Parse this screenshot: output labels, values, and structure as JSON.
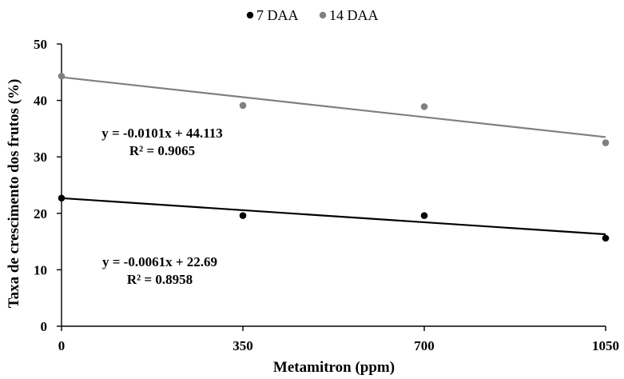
{
  "chart_data": {
    "type": "scatter",
    "title": "",
    "xlabel": "Metamitron (ppm)",
    "ylabel": "Taxa de crescimento dos frutos (%)",
    "x": [
      0,
      350,
      700,
      1050
    ],
    "x_ticks": [
      "0",
      "350",
      "700",
      "1050"
    ],
    "y_ticks": [
      "0",
      "10",
      "20",
      "30",
      "40",
      "50"
    ],
    "xlim": [
      0,
      1050
    ],
    "ylim": [
      0,
      50
    ],
    "grid": false,
    "legend_position": "top",
    "series": [
      {
        "name": "7 DAA",
        "color": "#000000",
        "values": [
          22.7,
          19.6,
          19.6,
          15.6
        ],
        "trendline": {
          "slope": -0.0061,
          "intercept": 22.69,
          "equation": "y = -0.0061x + 22.69",
          "r2": "R² = 0.8958"
        }
      },
      {
        "name": "14 DAA",
        "color": "#808080",
        "values": [
          44.3,
          39.1,
          38.9,
          32.5
        ],
        "trendline": {
          "slope": -0.0101,
          "intercept": 44.113,
          "equation": "y = -0.0101x + 44.113",
          "r2": "R² = 0.9065"
        }
      }
    ]
  }
}
